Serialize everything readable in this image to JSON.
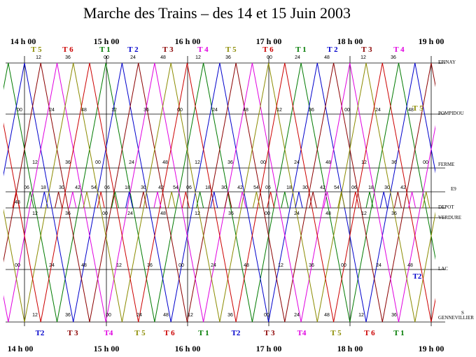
{
  "title": "Marche des Trains – des 14 et 15 Juin 2003",
  "colors": {
    "T1": "#007a00",
    "T2": "#0000cc",
    "T3": "#8b0000",
    "T4": "#e000e0",
    "T5": "#8b8b00",
    "T6": "#cc0000",
    "grid": "#000000"
  },
  "hours_top": [
    "14 h 00",
    "15 h 00",
    "16 h 00",
    "17 h 00",
    "18 h 00",
    "19 h 00"
  ],
  "hours_bottom": [
    "14 h 00",
    "15 h 00",
    "16 h 00",
    "17 h 00",
    "18 h 00",
    "19 h 00"
  ],
  "trains_top": [
    "T 5",
    "T 6",
    "T 1",
    "T 2",
    "T 3",
    "T 4",
    "T 5",
    "T 6",
    "T 1",
    "T 2",
    "T 3",
    "T 4"
  ],
  "trains_bottom": [
    "T2",
    "T 3",
    "T4",
    "T 5",
    "T 6",
    "T 1",
    "T2",
    "T 3",
    "T4",
    "T 5",
    "T 6",
    "T 1"
  ],
  "stations": [
    "EPINAY",
    "POMPIDOU",
    "FERME",
    "E9",
    "DEPOT",
    "VERDURE",
    "LAC",
    "GENNEVILLIER"
  ],
  "station_marks": {
    "T5_right": "T 5",
    "T2_right": "T2",
    "gennevilliers_prefix": "S"
  },
  "minute_rows": {
    "epinay": [
      "12",
      "36",
      "00",
      "24",
      "48",
      "12",
      "36",
      "00",
      "24",
      "48",
      "12",
      "36"
    ],
    "pompidou": [
      "00",
      "24",
      "48",
      "12",
      "36",
      "00",
      "24",
      "48",
      "12",
      "36",
      "00",
      "24",
      "48"
    ],
    "ferme": [
      "12",
      "36",
      "00",
      "24",
      "48",
      "12",
      "36",
      "00",
      "24",
      "48",
      "12",
      "36",
      "00"
    ],
    "e9": [
      "06",
      "18",
      "30",
      "42",
      "54",
      "06",
      "18",
      "30",
      "42",
      "54",
      "06",
      "18",
      "30",
      "42",
      "54",
      "06",
      "18",
      "30",
      "42",
      "54",
      "06",
      "18",
      "30",
      "42"
    ],
    "depot_left": "48",
    "verdure": [
      "12",
      "36",
      "00",
      "24",
      "48",
      "12",
      "36",
      "00",
      "24",
      "48",
      "12",
      "36"
    ],
    "lac": [
      "00",
      "24",
      "48",
      "12",
      "36",
      "00",
      "24",
      "48",
      "12",
      "36",
      "00",
      "24",
      "48"
    ],
    "gennevilliers": [
      "12",
      "36",
      "00",
      "24",
      "48",
      "12",
      "36",
      "00",
      "24",
      "48",
      "12",
      "36"
    ]
  }
}
